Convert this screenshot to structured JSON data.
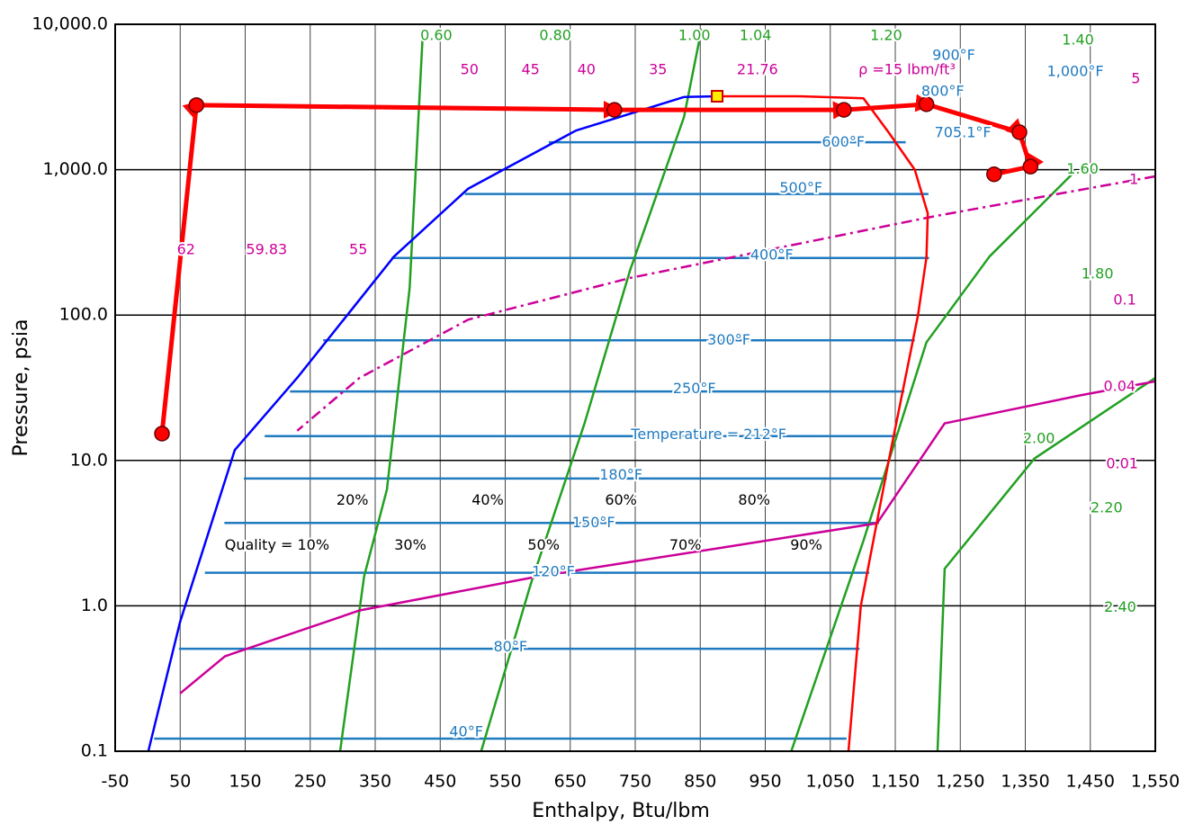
{
  "chart_data": {
    "type": "line",
    "x_label": "Enthalpy, Btu/lbm",
    "y_label": "Pressure, psia",
    "log_y": true,
    "grid": true,
    "xlim": [
      -50,
      1550
    ],
    "ylim": [
      0.1,
      10000
    ],
    "xticks": [
      -50,
      50,
      150,
      250,
      350,
      450,
      550,
      650,
      750,
      850,
      950,
      {
        "value": 1050,
        "label": "1,050"
      },
      {
        "value": 1150,
        "label": "1,150"
      },
      {
        "value": 1250,
        "label": "1,250"
      },
      {
        "value": 1350,
        "label": "1,350"
      },
      {
        "value": 1450,
        "label": "1,450"
      },
      {
        "value": 1550,
        "label": "1,550"
      }
    ],
    "yticks": [
      0.1,
      {
        "value": 1,
        "label": "1.0"
      },
      {
        "value": 10,
        "label": "10.0"
      },
      {
        "value": 100,
        "label": "100.0"
      },
      {
        "value": 1000,
        "label": "1,000.0"
      },
      {
        "value": 10000,
        "label": "10,000.0"
      }
    ],
    "series": [
      {
        "color": "#1f7ac0",
        "width": 2.5,
        "x": [
          10,
          1075
        ],
        "values": [
          0.122,
          0.122
        ]
      },
      {
        "color": "#1f7ac0",
        "width": 2.5,
        "x": [
          48,
          1095
        ],
        "values": [
          0.507,
          0.507
        ]
      },
      {
        "color": "#1f7ac0",
        "width": 2.5,
        "x": [
          88,
          1110
        ],
        "values": [
          1.69,
          1.69
        ]
      },
      {
        "color": "#1f7ac0",
        "width": 2.5,
        "x": [
          118,
          1125
        ],
        "values": [
          3.72,
          3.72
        ]
      },
      {
        "color": "#1f7ac0",
        "width": 2.5,
        "x": [
          148,
          1137
        ],
        "values": [
          7.51,
          7.51
        ]
      },
      {
        "color": "#1f7ac0",
        "width": 2.5,
        "x": [
          180,
          1150
        ],
        "values": [
          14.7,
          14.7
        ]
      },
      {
        "color": "#1f7ac0",
        "width": 2.5,
        "x": [
          219,
          1164
        ],
        "values": [
          29.8,
          29.8
        ]
      },
      {
        "color": "#1f7ac0",
        "width": 2.5,
        "x": [
          270,
          1180
        ],
        "values": [
          67,
          67
        ]
      },
      {
        "color": "#1f7ac0",
        "width": 2.5,
        "x": [
          375,
          1202
        ],
        "values": [
          247,
          247
        ]
      },
      {
        "color": "#1f7ac0",
        "width": 2.5,
        "x": [
          488,
          1201
        ],
        "values": [
          681,
          681
        ]
      },
      {
        "color": "#1f7ac0",
        "width": 2.5,
        "x": [
          617,
          1166
        ],
        "values": [
          1543,
          1543
        ]
      },
      {
        "color": "#22a022",
        "width": 2.5,
        "x": [
          423,
          403,
          368,
          333,
          296
        ],
        "values": [
          8300,
          154,
          6.3,
          1.6,
          0.1
        ]
      },
      {
        "color": "#22a022",
        "width": 2.5,
        "x": [
          852,
          825,
          742,
          672,
          589,
          513
        ],
        "values": [
          9300,
          2300,
          203,
          18,
          1.4,
          0.1
        ]
      },
      {
        "color": "#22a022",
        "width": 2.5,
        "x": [
          1427,
          1295,
          1198,
          1101,
          990
        ],
        "values": [
          980,
          253,
          65,
          2.8,
          0.1
        ]
      },
      {
        "color": "#22a022",
        "width": 2.5,
        "x": [
          1550,
          1364,
          1226,
          1215
        ],
        "values": [
          37,
          10.3,
          1.8,
          0.1
        ]
      },
      {
        "color": "#cc0099",
        "width": 2.5,
        "x": [
          1550,
          1434,
          1226,
          1122,
          880,
          603,
          326,
          119,
          50
        ],
        "values": [
          35,
          28,
          18,
          3.7,
          2.5,
          1.6,
          0.93,
          0.45,
          0.25
        ]
      },
      {
        "color": "#cc0099",
        "width": 2.5,
        "dash": "12 5 3 5",
        "x": [
          1550,
          1212,
          742,
          493,
          326,
          230
        ],
        "values": [
          900,
          480,
          180,
          93,
          37,
          16
        ]
      },
      {
        "color": "#0000ff",
        "width": 2.5,
        "x": [
          1,
          50,
          134,
          230,
          379,
          493,
          659,
          825,
          876
        ],
        "values": [
          0.1,
          0.78,
          11.8,
          37,
          253,
          740,
          1860,
          3160,
          3200
        ]
      },
      {
        "color": "#ff0000",
        "width": 2.5,
        "x": [
          1078,
          1097,
          1140,
          1185,
          1198,
          1200,
          1180,
          1140,
          1101,
          1000,
          876
        ],
        "values": [
          0.1,
          1,
          10,
          100,
          250,
          500,
          1000,
          1800,
          3100,
          3200,
          3200
        ]
      },
      {
        "color": "#ff0000",
        "width": 5,
        "markers": true,
        "x": [
          22,
          75,
          718,
          1071,
          1198,
          1341,
          1358,
          1302
        ],
        "values": [
          15.3,
          2780,
          2580,
          2580,
          2820,
          1810,
          1050,
          930
        ]
      }
    ],
    "critical_point": {
      "x": 876,
      "y": 3200,
      "color": "#ffee00"
    },
    "annotations": [
      {
        "text": "0.60",
        "x": 444,
        "y": 8300,
        "color": "#22a022"
      },
      {
        "text": "0.80",
        "x": 627,
        "y": 8300,
        "color": "#22a022"
      },
      {
        "text": "1.00",
        "x": 841,
        "y": 8300,
        "color": "#22a022"
      },
      {
        "text": "1.04",
        "x": 935,
        "y": 8300,
        "color": "#22a022"
      },
      {
        "text": "1.20",
        "x": 1136,
        "y": 8300,
        "color": "#22a022"
      },
      {
        "text": "1.40",
        "x": 1431,
        "y": 7740,
        "color": "#22a022"
      },
      {
        "text": "900°F",
        "x": 1240,
        "y": 6070,
        "color": "#1f7ac0"
      },
      {
        "text": "1,000°F",
        "x": 1427,
        "y": 4700,
        "color": "#1f7ac0"
      },
      {
        "text": "5",
        "x": 1520,
        "y": 4190,
        "color": "#cc0099"
      },
      {
        "text": "50",
        "x": 495,
        "y": 4840,
        "color": "#cc0099"
      },
      {
        "text": "45",
        "x": 589,
        "y": 4840,
        "color": "#cc0099"
      },
      {
        "text": "40",
        "x": 675,
        "y": 4840,
        "color": "#cc0099"
      },
      {
        "text": "35",
        "x": 785,
        "y": 4840,
        "color": "#cc0099"
      },
      {
        "text": "21.76",
        "x": 938,
        "y": 4840,
        "color": "#cc0099"
      },
      {
        "text": "ρ =15 lbm/ft³",
        "x": 1168,
        "y": 4840,
        "color": "#cc0099"
      },
      {
        "text": "800°F",
        "x": 1223,
        "y": 3440,
        "color": "#1f7ac0"
      },
      {
        "text": "705.1°F",
        "x": 1254,
        "y": 1780,
        "color": "#1f7ac0"
      },
      {
        "text": "600°F",
        "x": 1070,
        "y": 1540,
        "color": "#1f7ac0"
      },
      {
        "text": "1.60",
        "x": 1438,
        "y": 1000,
        "color": "#22a022"
      },
      {
        "text": "1",
        "x": 1517,
        "y": 850,
        "color": "#cc0099"
      },
      {
        "text": "500°F",
        "x": 1005,
        "y": 740,
        "color": "#1f7ac0"
      },
      {
        "text": "62",
        "x": 59,
        "y": 280,
        "color": "#cc0099"
      },
      {
        "text": "59.83",
        "x": 183,
        "y": 280,
        "color": "#cc0099"
      },
      {
        "text": "55",
        "x": 324,
        "y": 280,
        "color": "#cc0099"
      },
      {
        "text": "400°F",
        "x": 960,
        "y": 256,
        "color": "#1f7ac0"
      },
      {
        "text": "1.80",
        "x": 1461,
        "y": 190,
        "color": "#22a022"
      },
      {
        "text": "0.1",
        "x": 1503,
        "y": 126,
        "color": "#cc0099"
      },
      {
        "text": "300°F",
        "x": 894,
        "y": 67,
        "color": "#1f7ac0"
      },
      {
        "text": "250°F",
        "x": 841,
        "y": 31,
        "color": "#1f7ac0"
      },
      {
        "text": "0.04",
        "x": 1495,
        "y": 32,
        "color": "#cc0099"
      },
      {
        "text": "Temperature = 212°F",
        "x": 863,
        "y": 15,
        "color": "#1f7ac0"
      },
      {
        "text": "2.00",
        "x": 1371,
        "y": 14,
        "color": "#22a022"
      },
      {
        "text": "180°F",
        "x": 728,
        "y": 7.9,
        "color": "#1f7ac0"
      },
      {
        "text": "0.01",
        "x": 1499,
        "y": 9.4,
        "color": "#cc0099"
      },
      {
        "text": "20%",
        "x": 315,
        "y": 5.3,
        "color": "#000000"
      },
      {
        "text": "40%",
        "x": 523,
        "y": 5.3,
        "color": "#000000"
      },
      {
        "text": "60%",
        "x": 728,
        "y": 5.3,
        "color": "#000000"
      },
      {
        "text": "80%",
        "x": 933,
        "y": 5.3,
        "color": "#000000"
      },
      {
        "text": "2.20",
        "x": 1475,
        "y": 4.7,
        "color": "#22a022"
      },
      {
        "text": "150°F",
        "x": 686,
        "y": 3.7,
        "color": "#1f7ac0"
      },
      {
        "text": "Quality = 10%",
        "x": 199,
        "y": 2.6,
        "color": "#000000"
      },
      {
        "text": "30%",
        "x": 404,
        "y": 2.6,
        "color": "#000000"
      },
      {
        "text": "50%",
        "x": 609,
        "y": 2.6,
        "color": "#000000"
      },
      {
        "text": "70%",
        "x": 827,
        "y": 2.6,
        "color": "#000000"
      },
      {
        "text": "90%",
        "x": 1013,
        "y": 2.6,
        "color": "#000000"
      },
      {
        "text": "120°F",
        "x": 624,
        "y": 1.7,
        "color": "#1f7ac0"
      },
      {
        "text": "2.40",
        "x": 1496,
        "y": 0.97,
        "color": "#22a022"
      },
      {
        "text": "80°F",
        "x": 558,
        "y": 0.52,
        "color": "#1f7ac0"
      },
      {
        "text": "40°F",
        "x": 490,
        "y": 0.135,
        "color": "#1f7ac0"
      }
    ]
  }
}
